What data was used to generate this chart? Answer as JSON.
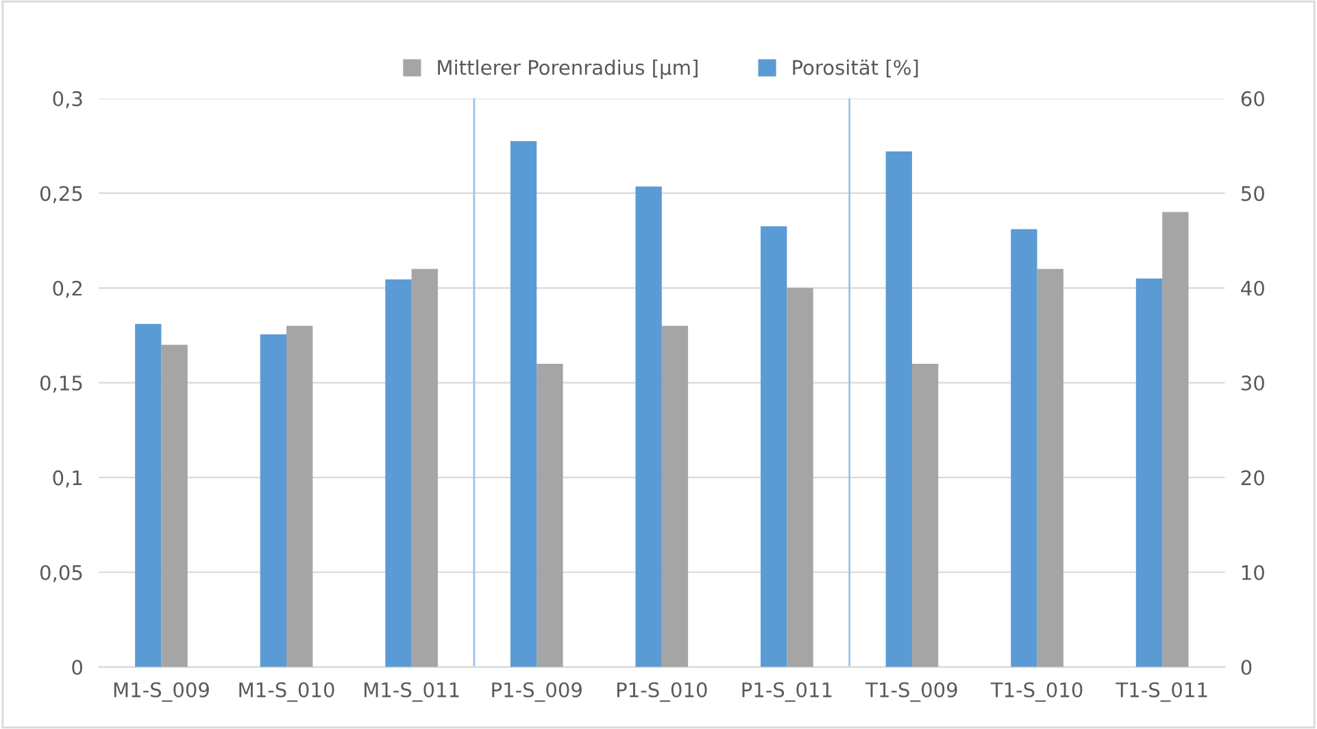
{
  "chart_data": {
    "type": "bar",
    "categories": [
      "M1-S_009",
      "M1-S_010",
      "M1-S_011",
      "P1-S_009",
      "P1-S_010",
      "P1-S_011",
      "T1-S_009",
      "T1-S_010",
      "T1-S_011"
    ],
    "series": [
      {
        "name": "Porosität [%]",
        "color": "#5b9bd5",
        "axis": "y2",
        "values": [
          36.2,
          35.1,
          40.9,
          55.5,
          50.7,
          46.5,
          54.4,
          46.2,
          41.0
        ]
      },
      {
        "name": "Mittlerer Porenradius [µm]",
        "color": "#a5a5a5",
        "values": [
          0.17,
          0.18,
          0.21,
          0.16,
          0.18,
          0.2,
          0.16,
          0.21,
          0.24
        ]
      }
    ],
    "ylim": [
      0,
      0.3
    ],
    "yticks": [
      {
        "value": 0,
        "label": "0"
      },
      {
        "value": 0.05,
        "label": "0,05"
      },
      {
        "value": 0.1,
        "label": "0,1"
      },
      {
        "value": 0.15,
        "label": "0,15"
      },
      {
        "value": 0.2,
        "label": "0,2"
      },
      {
        "value": 0.25,
        "label": "0,25"
      },
      {
        "value": 0.3,
        "label": "0,3"
      }
    ],
    "y2lim": [
      0,
      60
    ],
    "y2ticks": [
      0,
      10,
      20,
      30,
      40,
      50,
      60
    ],
    "grid": "y",
    "legend": "top"
  }
}
